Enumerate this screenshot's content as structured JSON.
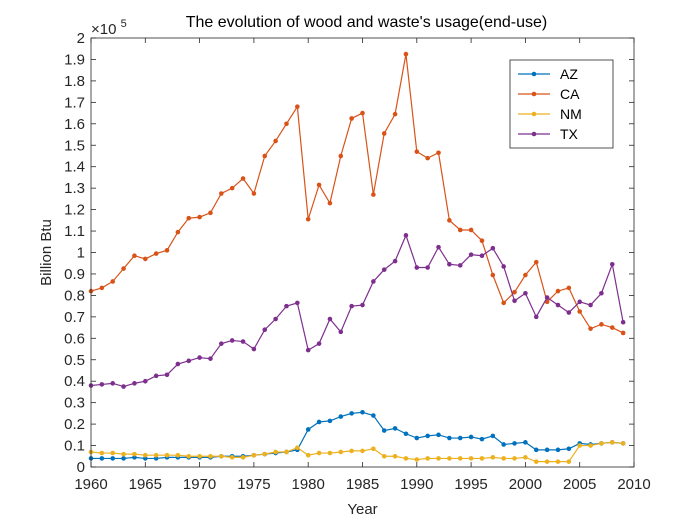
{
  "chart_data": {
    "type": "line",
    "title": "The evolution of wood and waste's usage(end-use)",
    "xlabel": "Year",
    "ylabel": "Billion Btu",
    "exponent_base": "×10",
    "exponent_power": "5",
    "xlim": [
      1960,
      2010
    ],
    "ylim": [
      0,
      2
    ],
    "xticks": [
      1960,
      1965,
      1970,
      1975,
      1980,
      1985,
      1990,
      1995,
      2000,
      2005,
      2010
    ],
    "xtick_labels": [
      "1960",
      "1965",
      "1970",
      "1975",
      "1980",
      "1985",
      "1990",
      "1995",
      "2000",
      "2005",
      "2010"
    ],
    "yticks": [
      0,
      0.1,
      0.2,
      0.3,
      0.4,
      0.5,
      0.6,
      0.7,
      0.8,
      0.9,
      1,
      1.1,
      1.2,
      1.3,
      1.4,
      1.5,
      1.6,
      1.7,
      1.8,
      1.9,
      2
    ],
    "ytick_labels": [
      "0",
      "0.1",
      "0.2",
      "0.3",
      "0.4",
      "0.5",
      "0.6",
      "0.7",
      "0.8",
      "0.9",
      "1",
      "1.1",
      "1.2",
      "1.3",
      "1.4",
      "1.5",
      "1.6",
      "1.7",
      "1.8",
      "1.9",
      "2"
    ],
    "grid": false,
    "legend_position": "top-right",
    "x": [
      1960,
      1961,
      1962,
      1963,
      1964,
      1965,
      1966,
      1967,
      1968,
      1969,
      1970,
      1971,
      1972,
      1973,
      1974,
      1975,
      1976,
      1977,
      1978,
      1979,
      1980,
      1981,
      1982,
      1983,
      1984,
      1985,
      1986,
      1987,
      1988,
      1989,
      1990,
      1991,
      1992,
      1993,
      1994,
      1995,
      1996,
      1997,
      1998,
      1999,
      2000,
      2001,
      2002,
      2003,
      2004,
      2005,
      2006,
      2007,
      2008,
      2009
    ],
    "series": [
      {
        "name": "AZ",
        "color": "#0072BD",
        "values": [
          0.04,
          0.04,
          0.04,
          0.04,
          0.045,
          0.04,
          0.04,
          0.045,
          0.045,
          0.045,
          0.045,
          0.045,
          0.05,
          0.05,
          0.05,
          0.055,
          0.06,
          0.065,
          0.07,
          0.08,
          0.175,
          0.21,
          0.215,
          0.235,
          0.25,
          0.255,
          0.24,
          0.17,
          0.18,
          0.155,
          0.135,
          0.145,
          0.15,
          0.135,
          0.135,
          0.14,
          0.13,
          0.145,
          0.105,
          0.11,
          0.115,
          0.08,
          0.08,
          0.08,
          0.085,
          0.11,
          0.105,
          0.11,
          0.115,
          0.11
        ]
      },
      {
        "name": "CA",
        "color": "#D95319",
        "values": [
          0.82,
          0.835,
          0.865,
          0.925,
          0.985,
          0.97,
          0.995,
          1.01,
          1.095,
          1.16,
          1.165,
          1.185,
          1.275,
          1.3,
          1.345,
          1.275,
          1.45,
          1.52,
          1.6,
          1.68,
          1.155,
          1.315,
          1.23,
          1.45,
          1.625,
          1.65,
          1.27,
          1.555,
          1.645,
          1.925,
          1.47,
          1.44,
          1.465,
          1.15,
          1.105,
          1.105,
          1.055,
          0.895,
          0.765,
          0.815,
          0.895,
          0.955,
          0.77,
          0.82,
          0.835,
          0.725,
          0.645,
          0.665,
          0.65,
          0.625
        ]
      },
      {
        "name": "NM",
        "color": "#EDB120",
        "values": [
          0.07,
          0.065,
          0.065,
          0.06,
          0.06,
          0.055,
          0.055,
          0.055,
          0.055,
          0.05,
          0.05,
          0.05,
          0.05,
          0.045,
          0.045,
          0.055,
          0.06,
          0.07,
          0.07,
          0.09,
          0.055,
          0.065,
          0.065,
          0.07,
          0.075,
          0.075,
          0.085,
          0.05,
          0.05,
          0.04,
          0.035,
          0.04,
          0.04,
          0.04,
          0.04,
          0.04,
          0.04,
          0.045,
          0.04,
          0.04,
          0.045,
          0.025,
          0.025,
          0.025,
          0.025,
          0.1,
          0.1,
          0.11,
          0.115,
          0.11
        ]
      },
      {
        "name": "TX",
        "color": "#7E2F8E",
        "values": [
          0.38,
          0.385,
          0.39,
          0.375,
          0.39,
          0.4,
          0.425,
          0.43,
          0.48,
          0.495,
          0.51,
          0.505,
          0.575,
          0.59,
          0.585,
          0.55,
          0.64,
          0.69,
          0.75,
          0.765,
          0.545,
          0.575,
          0.69,
          0.63,
          0.75,
          0.755,
          0.865,
          0.92,
          0.96,
          1.08,
          0.93,
          0.93,
          1.025,
          0.945,
          0.94,
          0.99,
          0.985,
          1.02,
          0.935,
          0.775,
          0.81,
          0.7,
          0.79,
          0.755,
          0.72,
          0.77,
          0.755,
          0.81,
          0.945,
          0.675
        ]
      }
    ]
  }
}
